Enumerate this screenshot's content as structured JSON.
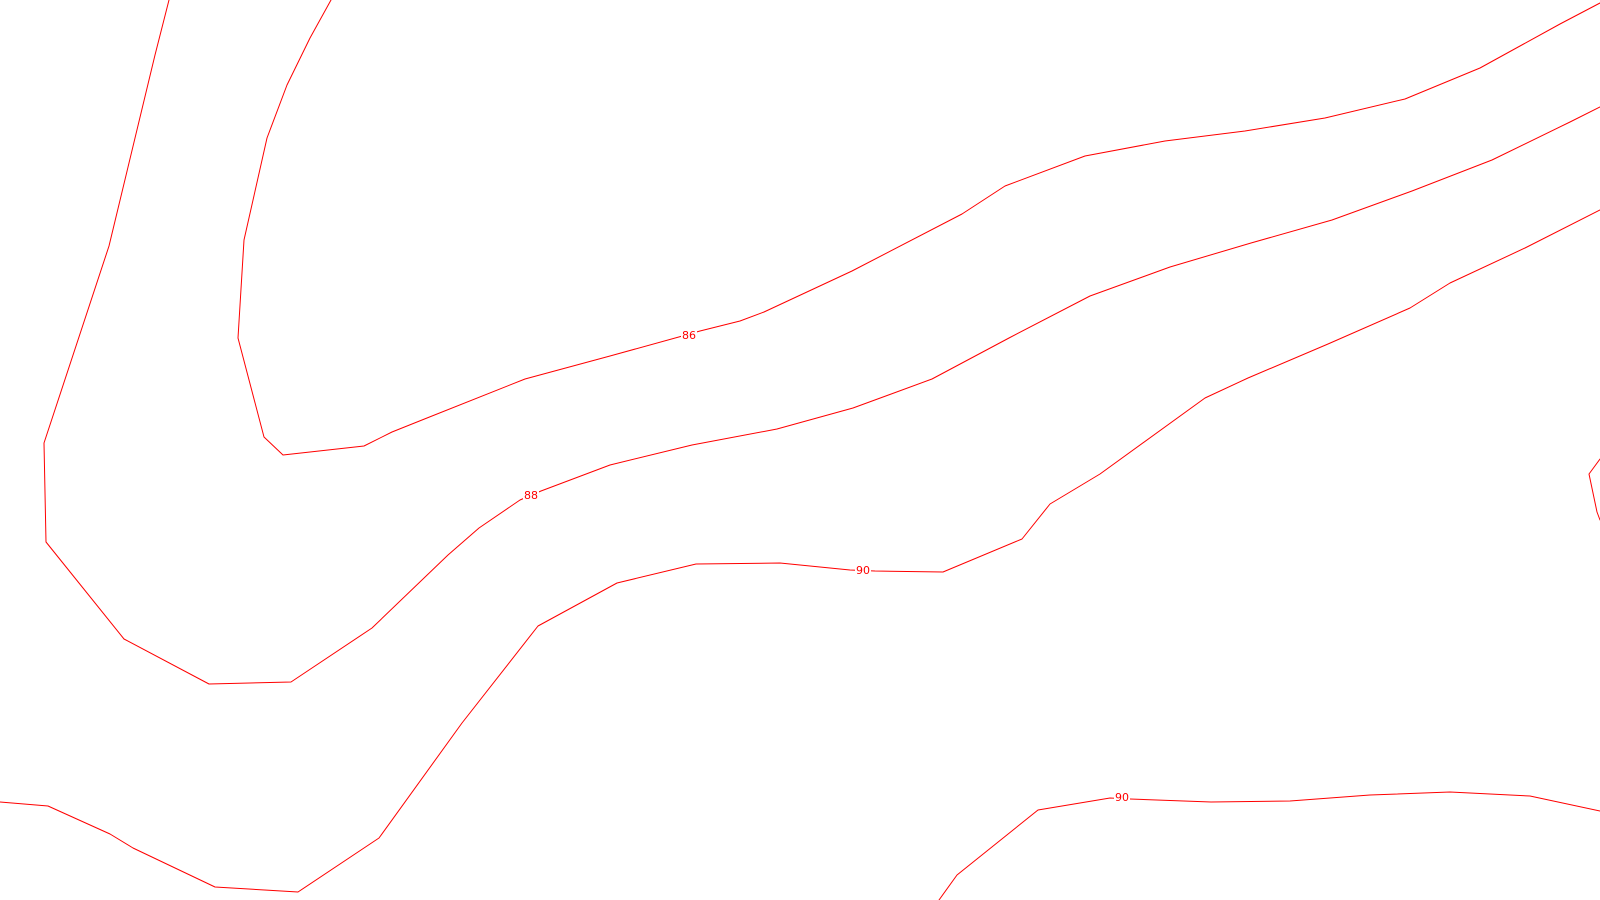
{
  "map": {
    "background_color": "#ffffff",
    "contour_color": "#ff0000",
    "labels": {
      "c86": "86",
      "c88": "88",
      "c90a": "90",
      "c90b": "90"
    }
  }
}
